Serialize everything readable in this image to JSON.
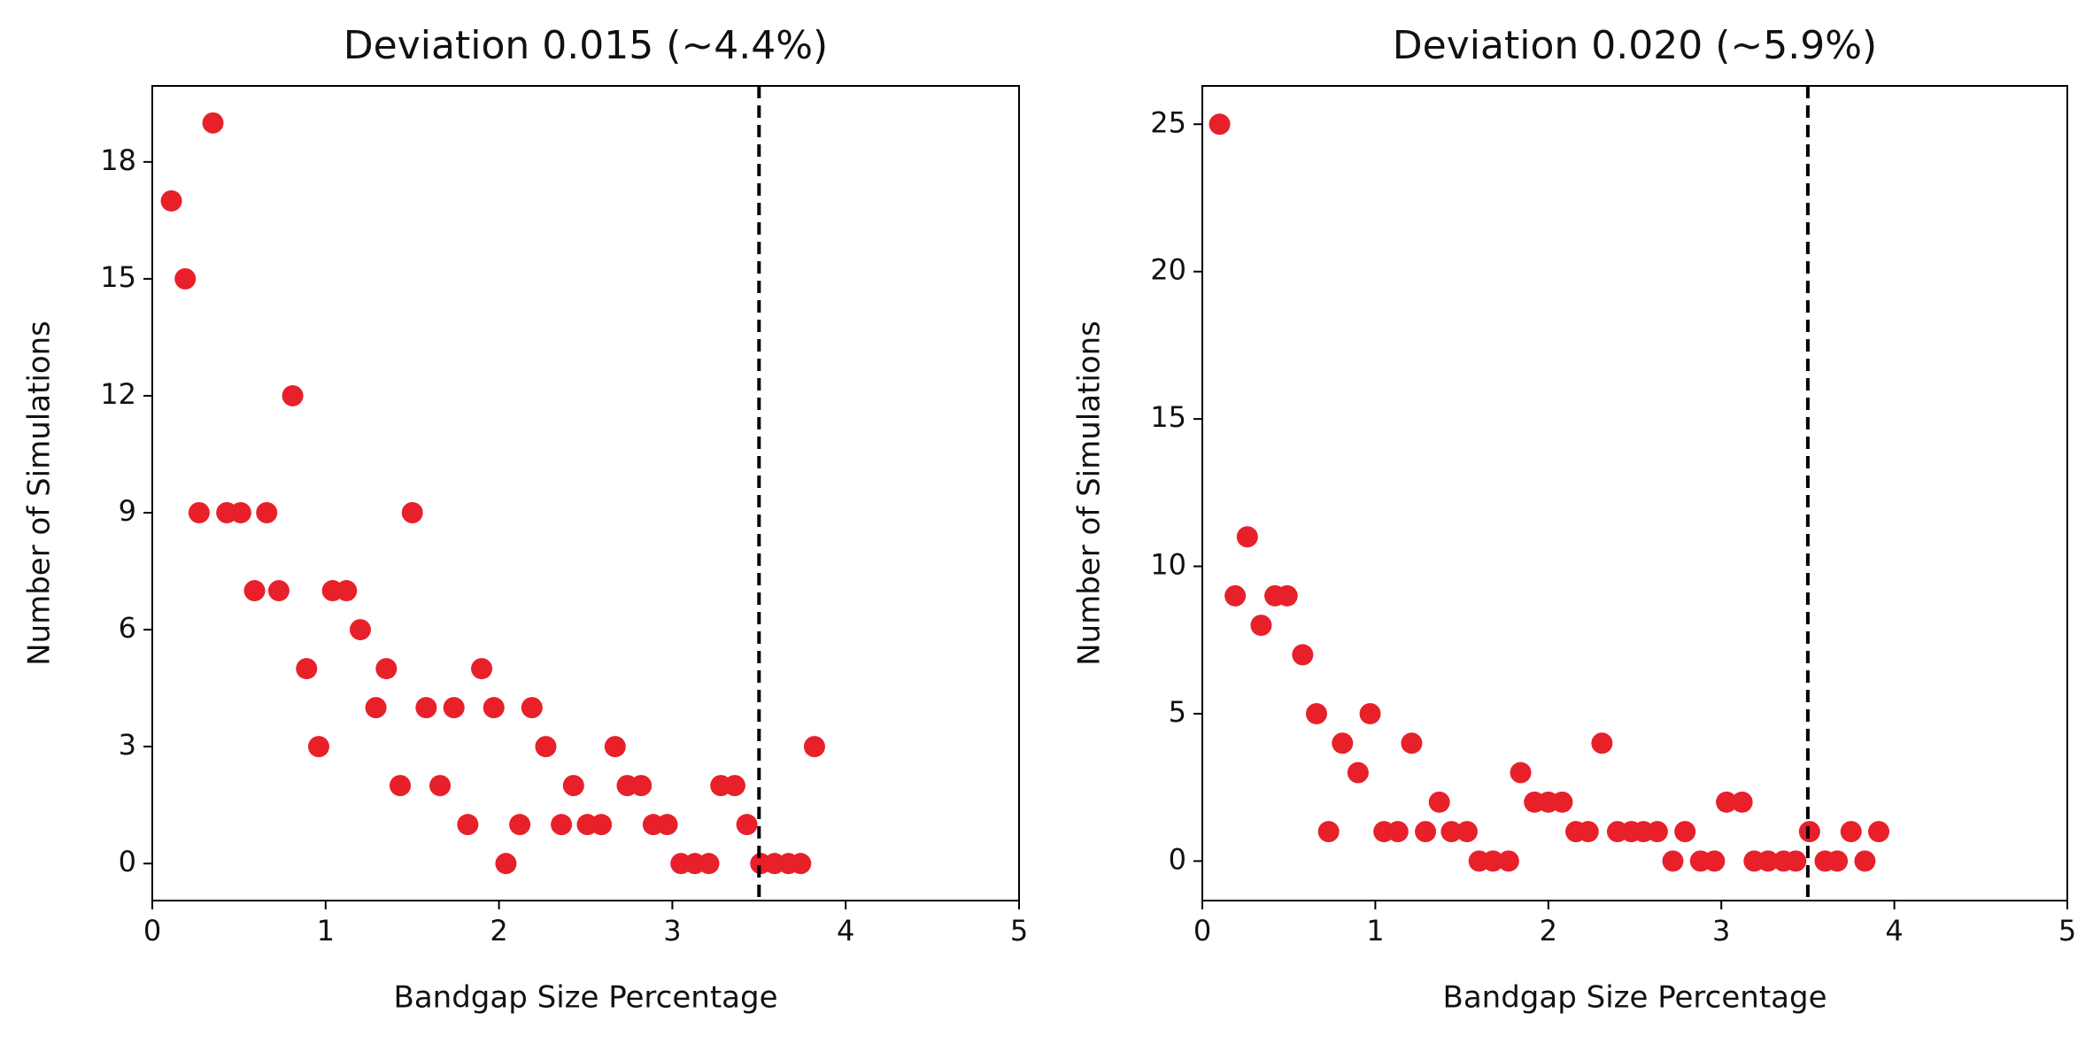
{
  "chart_data": [
    {
      "type": "scatter",
      "title": "Deviation 0.015 (~4.4%)",
      "x_label": "Bandgap Size Percentage",
      "y_label": "Number of Simulations",
      "color": "#e8202a",
      "x": [
        0.11,
        0.19,
        0.27,
        0.35,
        0.43,
        0.51,
        0.59,
        0.66,
        0.73,
        0.81,
        0.89,
        0.96,
        1.04,
        1.12,
        1.2,
        1.29,
        1.35,
        1.43,
        1.5,
        1.58,
        1.66,
        1.74,
        1.82,
        1.9,
        1.97,
        2.04,
        2.12,
        2.19,
        2.27,
        2.36,
        2.43,
        2.51,
        2.59,
        2.67,
        2.74,
        2.82,
        2.89,
        2.97,
        3.05,
        3.13,
        3.21,
        3.28,
        3.36,
        3.43,
        3.51,
        3.59,
        3.67,
        3.74,
        3.82
      ],
      "values": [
        17,
        15,
        9,
        19,
        9,
        9,
        7,
        9,
        7,
        12,
        5,
        3,
        7,
        7,
        6,
        4,
        5,
        2,
        9,
        4,
        2,
        4,
        1,
        5,
        4,
        0,
        1,
        4,
        3,
        1,
        2,
        1,
        1,
        3,
        2,
        2,
        1,
        1,
        0,
        0,
        0,
        2,
        2,
        1,
        0,
        0,
        0,
        0,
        3
      ],
      "xlim": [
        0,
        5
      ],
      "ylim": [
        -0.95,
        19.95
      ],
      "xticks": [
        0,
        1,
        2,
        3,
        4,
        5
      ],
      "yticks": [
        0,
        3,
        6,
        9,
        12,
        15,
        18
      ],
      "reference_line": {
        "x": 3.5,
        "color": "#000000",
        "style": "dashed"
      }
    },
    {
      "type": "scatter",
      "title": "Deviation 0.020 (~5.9%)",
      "x_label": "Bandgap Size Percentage",
      "y_label": "Number of Simulations",
      "color": "#e8202a",
      "x": [
        0.1,
        0.19,
        0.26,
        0.34,
        0.42,
        0.49,
        0.58,
        0.66,
        0.73,
        0.81,
        0.9,
        0.97,
        1.05,
        1.13,
        1.21,
        1.29,
        1.37,
        1.44,
        1.53,
        1.6,
        1.68,
        1.77,
        1.84,
        1.92,
        2.0,
        2.08,
        2.16,
        2.23,
        2.31,
        2.4,
        2.48,
        2.55,
        2.63,
        2.72,
        2.79,
        2.88,
        2.96,
        3.03,
        3.12,
        3.19,
        3.27,
        3.36,
        3.43,
        3.51,
        3.6,
        3.67,
        3.75,
        3.83,
        3.91
      ],
      "values": [
        25,
        9,
        11,
        8,
        9,
        9,
        7,
        5,
        1,
        4,
        3,
        5,
        1,
        1,
        4,
        1,
        2,
        1,
        1,
        0,
        0,
        0,
        3,
        2,
        2,
        2,
        1,
        1,
        4,
        1,
        1,
        1,
        1,
        0,
        1,
        0,
        0,
        2,
        2,
        0,
        0,
        0,
        0,
        1,
        0,
        0,
        1,
        0,
        1
      ],
      "xlim": [
        0,
        5
      ],
      "ylim": [
        -1.34,
        26.3
      ],
      "xticks": [
        0,
        1,
        2,
        3,
        4,
        5
      ],
      "yticks": [
        0,
        5,
        10,
        15,
        20,
        25
      ],
      "reference_line": {
        "x": 3.5,
        "color": "#000000",
        "style": "dashed"
      }
    }
  ]
}
